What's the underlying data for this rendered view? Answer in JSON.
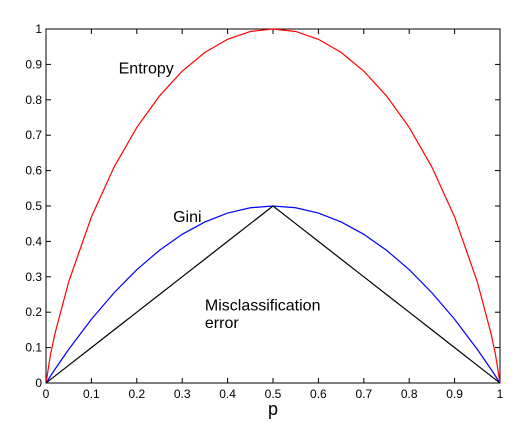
{
  "chart_data": {
    "type": "line",
    "title": "",
    "xlabel": "p",
    "ylabel": "",
    "xlim": [
      0,
      1
    ],
    "ylim": [
      0,
      1
    ],
    "x_ticks": [
      "0",
      "0.1",
      "0.2",
      "0.3",
      "0.4",
      "0.5",
      "0.6",
      "0.7",
      "0.8",
      "0.9",
      "1"
    ],
    "y_ticks": [
      "0",
      "0.1",
      "0.2",
      "0.3",
      "0.4",
      "0.5",
      "0.6",
      "0.7",
      "0.8",
      "0.9",
      "1"
    ],
    "grid": false,
    "x": [
      0,
      0.01,
      0.02,
      0.05,
      0.1,
      0.15,
      0.2,
      0.25,
      0.3,
      0.35,
      0.4,
      0.45,
      0.5,
      0.55,
      0.6,
      0.65,
      0.7,
      0.75,
      0.8,
      0.85,
      0.9,
      0.95,
      0.98,
      0.99,
      1
    ],
    "series": [
      {
        "name": "Entropy",
        "color": "#ff0000",
        "values": [
          0,
          0.081,
          0.141,
          0.286,
          0.469,
          0.61,
          0.722,
          0.811,
          0.881,
          0.934,
          0.971,
          0.993,
          1,
          0.993,
          0.971,
          0.934,
          0.881,
          0.811,
          0.722,
          0.61,
          0.469,
          0.286,
          0.141,
          0.081,
          0
        ]
      },
      {
        "name": "Gini",
        "color": "#0000ff",
        "values": [
          0,
          0.0198,
          0.0392,
          0.095,
          0.18,
          0.255,
          0.32,
          0.375,
          0.42,
          0.455,
          0.48,
          0.495,
          0.5,
          0.495,
          0.48,
          0.455,
          0.42,
          0.375,
          0.32,
          0.255,
          0.18,
          0.095,
          0.0392,
          0.0198,
          0
        ]
      },
      {
        "name": "Misclassification error",
        "color": "#000000",
        "values": [
          0,
          0.01,
          0.02,
          0.05,
          0.1,
          0.15,
          0.2,
          0.25,
          0.3,
          0.35,
          0.4,
          0.45,
          0.5,
          0.45,
          0.4,
          0.35,
          0.3,
          0.25,
          0.2,
          0.15,
          0.1,
          0.05,
          0.02,
          0.01,
          0
        ]
      }
    ],
    "annotations": [
      {
        "text": "Entropy",
        "x": 0.16,
        "y": 0.875
      },
      {
        "text": "Gini",
        "x": 0.28,
        "y": 0.455
      },
      {
        "text": "Misclassification",
        "x": 0.35,
        "y": 0.205
      },
      {
        "text": "error",
        "x": 0.35,
        "y": 0.155
      }
    ]
  }
}
